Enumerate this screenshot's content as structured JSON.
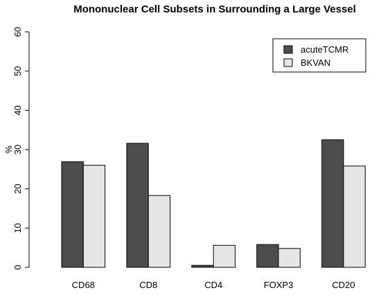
{
  "chart_data": {
    "type": "bar",
    "title": "Mononuclear Cell Subsets in Surrounding a Large Vessel",
    "xlabel": "",
    "ylabel": "%",
    "ylim": [
      0,
      60
    ],
    "yticks": [
      "0",
      "10",
      "20",
      "30",
      "40",
      "50",
      "60"
    ],
    "categories": [
      "CD68",
      "CD8",
      "CD4",
      "FOXP3",
      "CD20"
    ],
    "series": [
      {
        "name": "acuteTCMR",
        "color": "#4d4d4d",
        "values": [
          26.9,
          31.6,
          0.5,
          5.8,
          32.5
        ]
      },
      {
        "name": "BKVAN",
        "color": "#e6e6e6",
        "values": [
          26.0,
          18.3,
          5.6,
          4.8,
          25.8
        ]
      }
    ],
    "grid": false,
    "legend": "top-right"
  }
}
